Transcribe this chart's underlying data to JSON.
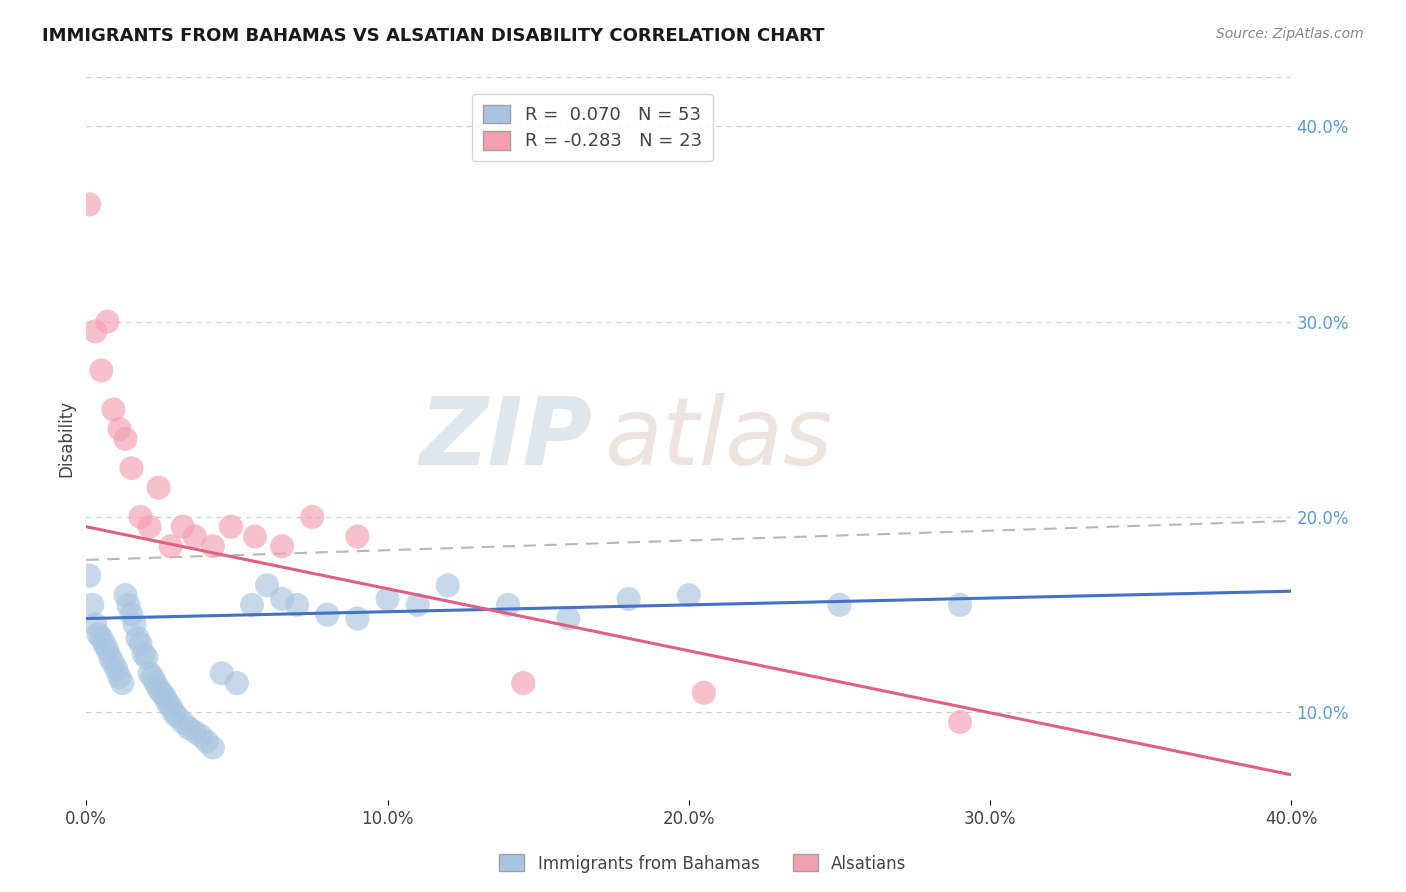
{
  "title": "IMMIGRANTS FROM BAHAMAS VS ALSATIAN DISABILITY CORRELATION CHART",
  "source": "Source: ZipAtlas.com",
  "ylabel": "Disability",
  "xlim": [
    0.0,
    0.4
  ],
  "ylim": [
    0.055,
    0.425
  ],
  "xticks": [
    0.0,
    0.1,
    0.2,
    0.3,
    0.4
  ],
  "xtick_labels": [
    "0.0%",
    "10.0%",
    "20.0%",
    "30.0%",
    "40.0%"
  ],
  "yticks_right": [
    0.1,
    0.2,
    0.3,
    0.4
  ],
  "ytick_labels_right": [
    "10.0%",
    "20.0%",
    "30.0%",
    "40.0%"
  ],
  "blue_R": 0.07,
  "blue_N": 53,
  "pink_R": -0.283,
  "pink_N": 23,
  "blue_color": "#a8c4e0",
  "pink_color": "#f2a0b0",
  "blue_line_color": "#4472c4",
  "pink_line_color": "#e06080",
  "legend_label_blue": "Immigrants from Bahamas",
  "legend_label_pink": "Alsatians",
  "watermark_zip": "ZIP",
  "watermark_atlas": "atlas",
  "blue_scatter_x": [
    0.001,
    0.002,
    0.003,
    0.004,
    0.005,
    0.006,
    0.007,
    0.008,
    0.009,
    0.01,
    0.011,
    0.012,
    0.013,
    0.014,
    0.015,
    0.016,
    0.017,
    0.018,
    0.019,
    0.02,
    0.021,
    0.022,
    0.023,
    0.024,
    0.025,
    0.026,
    0.027,
    0.028,
    0.029,
    0.03,
    0.032,
    0.034,
    0.036,
    0.038,
    0.04,
    0.042,
    0.045,
    0.05,
    0.055,
    0.06,
    0.065,
    0.07,
    0.08,
    0.09,
    0.1,
    0.11,
    0.12,
    0.14,
    0.16,
    0.18,
    0.2,
    0.25,
    0.29
  ],
  "blue_scatter_y": [
    0.17,
    0.155,
    0.145,
    0.14,
    0.138,
    0.135,
    0.132,
    0.128,
    0.125,
    0.122,
    0.118,
    0.115,
    0.16,
    0.155,
    0.15,
    0.145,
    0.138,
    0.135,
    0.13,
    0.128,
    0.12,
    0.118,
    0.115,
    0.112,
    0.11,
    0.108,
    0.105,
    0.103,
    0.1,
    0.098,
    0.095,
    0.092,
    0.09,
    0.088,
    0.085,
    0.082,
    0.12,
    0.115,
    0.155,
    0.165,
    0.158,
    0.155,
    0.15,
    0.148,
    0.158,
    0.155,
    0.165,
    0.155,
    0.148,
    0.158,
    0.16,
    0.155,
    0.155
  ],
  "pink_scatter_x": [
    0.001,
    0.003,
    0.005,
    0.007,
    0.009,
    0.011,
    0.013,
    0.015,
    0.018,
    0.021,
    0.024,
    0.028,
    0.032,
    0.036,
    0.042,
    0.048,
    0.056,
    0.065,
    0.075,
    0.09,
    0.145,
    0.205,
    0.29
  ],
  "pink_scatter_y": [
    0.36,
    0.295,
    0.275,
    0.3,
    0.255,
    0.245,
    0.24,
    0.225,
    0.2,
    0.195,
    0.215,
    0.185,
    0.195,
    0.19,
    0.185,
    0.195,
    0.19,
    0.185,
    0.2,
    0.19,
    0.115,
    0.11,
    0.095
  ],
  "blue_trend_x": [
    0.0,
    0.4
  ],
  "blue_trend_y": [
    0.148,
    0.162
  ],
  "pink_trend_x": [
    0.0,
    0.4
  ],
  "pink_trend_y": [
    0.195,
    0.068
  ],
  "dashed_trend_x": [
    0.0,
    0.4
  ],
  "dashed_trend_y": [
    0.178,
    0.198
  ],
  "gridline_color": "#cccccc",
  "background_color": "#ffffff"
}
